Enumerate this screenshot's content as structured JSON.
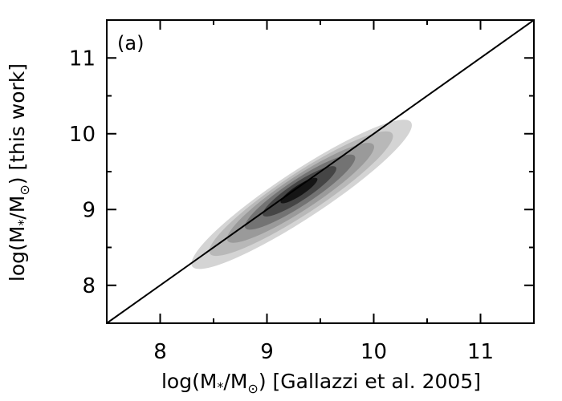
{
  "chart_data": {
    "type": "heatmap",
    "panel_label": "(a)",
    "xlabel_parts": [
      "log(M",
      "*",
      "/M",
      "⊙",
      ") [Gallazzi et al. 2005]"
    ],
    "ylabel_parts": [
      "log(M",
      "*",
      "/M",
      "⊙",
      ") [this work]"
    ],
    "xlim": [
      7.5,
      11.5
    ],
    "ylim": [
      7.5,
      11.5
    ],
    "xticks": [
      8,
      9,
      10,
      11
    ],
    "yticks": [
      8,
      9,
      10,
      11
    ],
    "xtick_labels": [
      "8",
      "9",
      "10",
      "11"
    ],
    "ytick_labels": [
      "8",
      "9",
      "10",
      "11"
    ],
    "one_to_one_line": {
      "x": [
        7.5,
        11.5
      ],
      "y": [
        7.5,
        11.5
      ]
    },
    "density": {
      "description_unit": "log stellar mass",
      "center": [
        9.3,
        9.25
      ],
      "major_axis_ends": [
        [
          8.3,
          8.25
        ],
        [
          10.35,
          10.15
        ]
      ],
      "minor_half_width": 0.22,
      "levels": [
        0.1,
        0.25,
        0.45,
        0.65,
        0.85,
        1.0
      ],
      "colors": [
        "#d4d4d4",
        "#b8b8b8",
        "#9a9a9a",
        "#737373",
        "#454545",
        "#151515"
      ]
    },
    "grid": false,
    "legend": false
  }
}
